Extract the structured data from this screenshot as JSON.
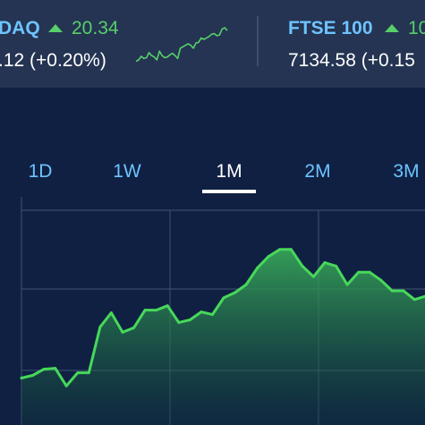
{
  "tickers": [
    {
      "name": "DAQ",
      "change": "20.34",
      "value": ".12 (+0.20%)",
      "trend": "up"
    },
    {
      "name": "FTSE 100",
      "change": "10",
      "value": "7134.58 (+0.15",
      "trend": "up"
    }
  ],
  "sparkline": [
    52,
    50,
    45,
    48,
    47,
    40,
    44,
    46,
    50,
    38,
    44,
    47,
    46,
    43,
    41,
    44,
    48,
    34,
    32,
    30,
    28,
    30,
    34,
    27,
    26,
    20,
    22,
    20,
    18,
    15,
    14,
    17,
    16,
    8,
    6,
    10
  ],
  "tabs": [
    "1D",
    "1W",
    "1M",
    "2M",
    "3M"
  ],
  "active_tab": "1M",
  "colors": {
    "background": "#0f2043",
    "ticker_bg": "#243452",
    "accent": "#6ec3ff",
    "positive": "#57cf6a",
    "line": "#47d85a"
  },
  "chart_data": {
    "type": "area",
    "title": "",
    "xlabel": "",
    "ylabel": "",
    "grid": true,
    "y": [
      0,
      3,
      10,
      11,
      -9,
      6,
      6,
      58,
      74,
      52,
      57,
      77,
      77,
      82,
      63,
      66,
      75,
      72,
      91,
      97,
      106,
      125,
      138,
      146,
      146,
      127,
      115,
      131,
      127,
      106,
      120,
      120,
      111,
      99,
      99,
      89,
      93
    ],
    "ylim": [
      -30,
      165
    ]
  }
}
